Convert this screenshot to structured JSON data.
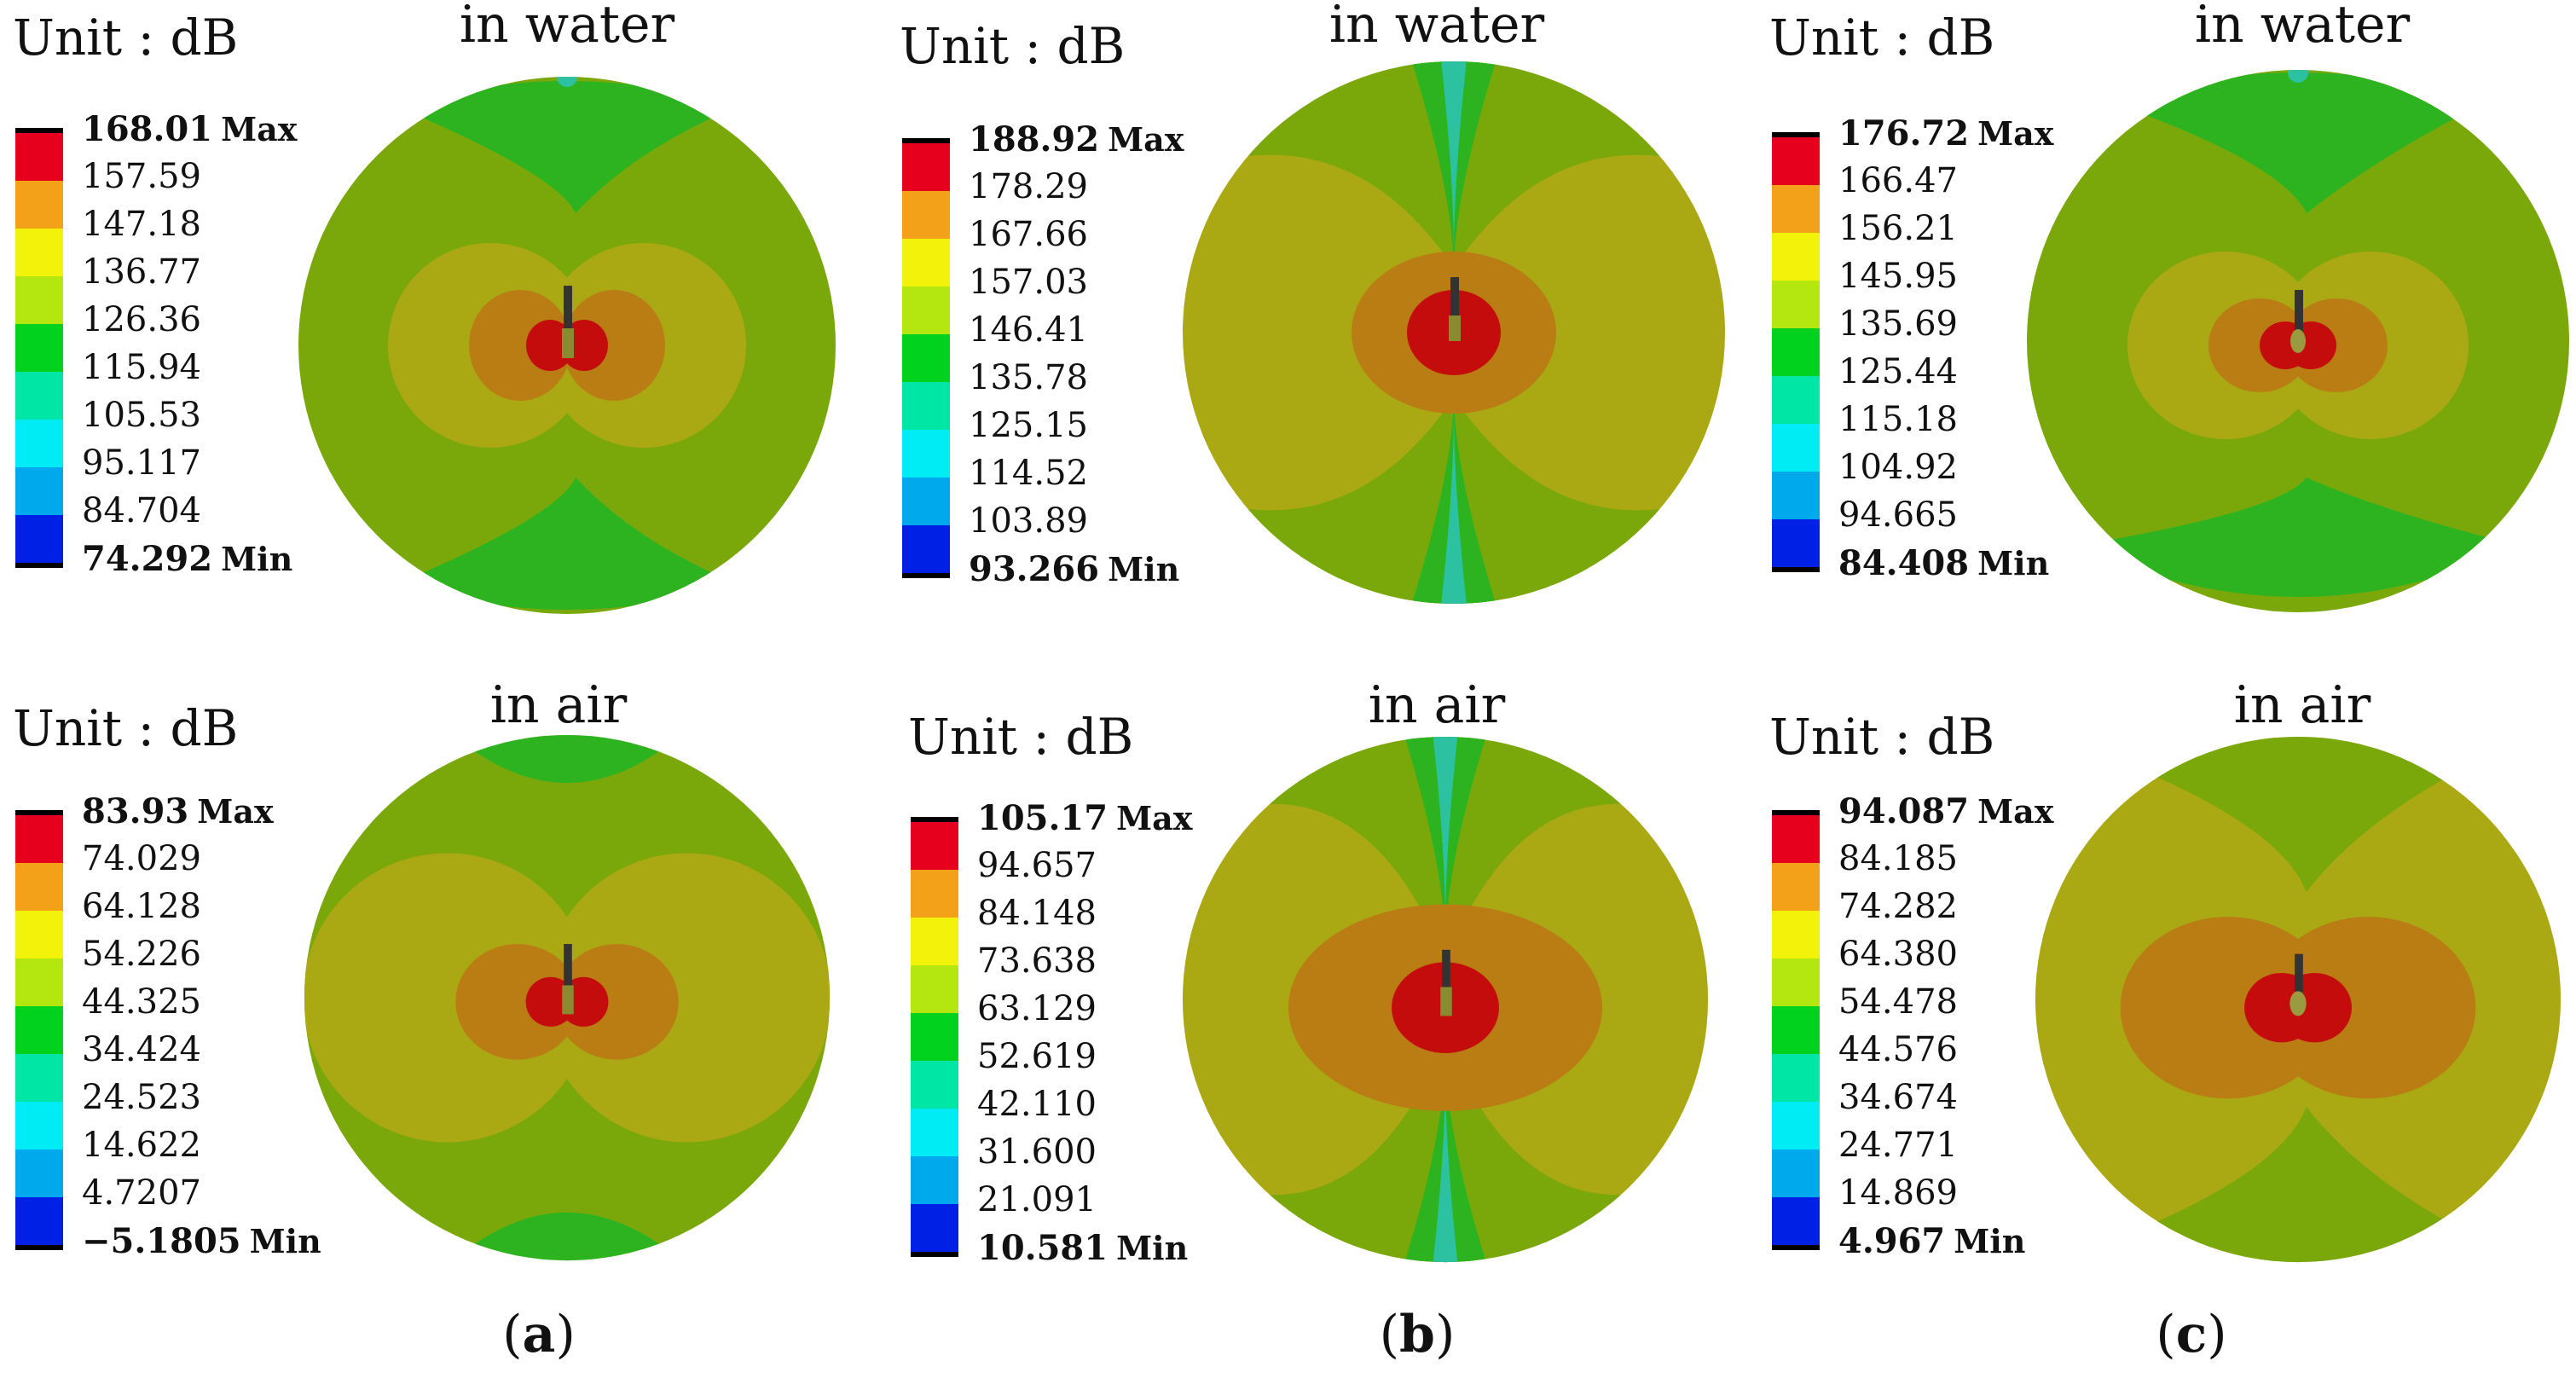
{
  "unit_label": "Unit : dB",
  "legend_colors": [
    "#e6001e",
    "#f4a11a",
    "#f2f20a",
    "#b4e60f",
    "#00d21e",
    "#00e6a5",
    "#00ecf4",
    "#00a8ec",
    "#0020e6"
  ],
  "panels": [
    {
      "id": "a-water",
      "title": "in water",
      "max": "168.01",
      "min": "74.292",
      "mid_values": [
        "157.59",
        "147.18",
        "136.77",
        "126.36",
        "115.94",
        "105.53",
        "95.117",
        "84.704"
      ],
      "max_tag": "Max",
      "min_tag": "Min"
    },
    {
      "id": "b-water",
      "title": "in water",
      "max": "188.92",
      "min": "93.266",
      "mid_values": [
        "178.29",
        "167.66",
        "157.03",
        "146.41",
        "135.78",
        "125.15",
        "114.52",
        "103.89"
      ],
      "max_tag": "Max",
      "min_tag": "Min"
    },
    {
      "id": "c-water",
      "title": "in water",
      "max": "176.72",
      "min": "84.408",
      "mid_values": [
        "166.47",
        "156.21",
        "145.95",
        "135.69",
        "125.44",
        "115.18",
        "104.92",
        "94.665"
      ],
      "max_tag": "Max",
      "min_tag": "Min"
    },
    {
      "id": "a-air",
      "title": "in air",
      "max": "83.93",
      "min": "−5.1805",
      "mid_values": [
        "74.029",
        "64.128",
        "54.226",
        "44.325",
        "34.424",
        "24.523",
        "14.622",
        "4.7207"
      ],
      "max_tag": "Max",
      "min_tag": "Min"
    },
    {
      "id": "b-air",
      "title": "in air",
      "max": "105.17",
      "min": "10.581",
      "mid_values": [
        "94.657",
        "84.148",
        "73.638",
        "63.129",
        "52.619",
        "42.110",
        "31.600",
        "21.091"
      ],
      "max_tag": "Max",
      "min_tag": "Min"
    },
    {
      "id": "c-air",
      "title": "in air",
      "max": "94.087",
      "min": "4.967",
      "mid_values": [
        "84.185",
        "74.282",
        "64.380",
        "54.478",
        "44.576",
        "34.674",
        "24.771",
        "14.869"
      ],
      "max_tag": "Max",
      "min_tag": "Min"
    }
  ],
  "subfigure_labels": [
    "a",
    "b",
    "c"
  ]
}
